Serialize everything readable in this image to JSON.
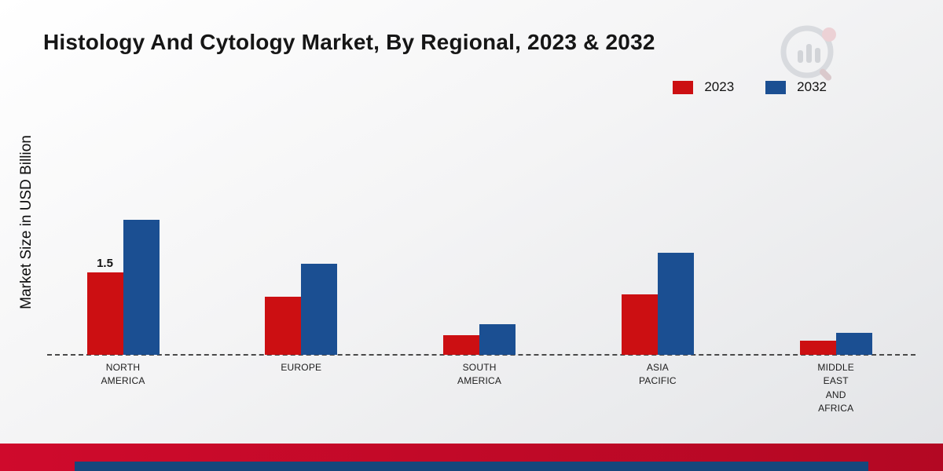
{
  "title": "Histology And Cytology Market, By Regional, 2023 & 2032",
  "legend": {
    "items": [
      {
        "label": "2023",
        "color": "#cc0f12"
      },
      {
        "label": "2032",
        "color": "#1b4f92"
      }
    ]
  },
  "footer": {
    "band_color": "#cf0a2c",
    "accent_bar_color": "#16477c"
  },
  "chart_data": {
    "type": "bar",
    "title": "Histology And Cytology Market, By Regional, 2023 & 2032",
    "xlabel": "",
    "ylabel": "Market Size in USD Billion",
    "ylim": [
      0,
      3
    ],
    "grid": false,
    "legend_position": "top-right",
    "categories": [
      "NORTH AMERICA",
      "EUROPE",
      "SOUTH AMERICA",
      "ASIA PACIFIC",
      "MIDDLE EAST AND AFRICA"
    ],
    "category_label_lines": [
      [
        "NORTH",
        "AMERICA"
      ],
      [
        "EUROPE"
      ],
      [
        "SOUTH",
        "AMERICA"
      ],
      [
        "ASIA",
        "PACIFIC"
      ],
      [
        "MIDDLE",
        "EAST",
        "AND",
        "AFRICA"
      ]
    ],
    "series": [
      {
        "name": "2023",
        "color": "#cc0f12",
        "values": [
          1.5,
          1.05,
          0.35,
          1.1,
          0.25
        ]
      },
      {
        "name": "2032",
        "color": "#1b4f92",
        "values": [
          2.45,
          1.65,
          0.55,
          1.85,
          0.4
        ]
      }
    ],
    "bar_value_labels": [
      {
        "series_index": 0,
        "category_index": 0,
        "text": "1.5"
      }
    ]
  }
}
